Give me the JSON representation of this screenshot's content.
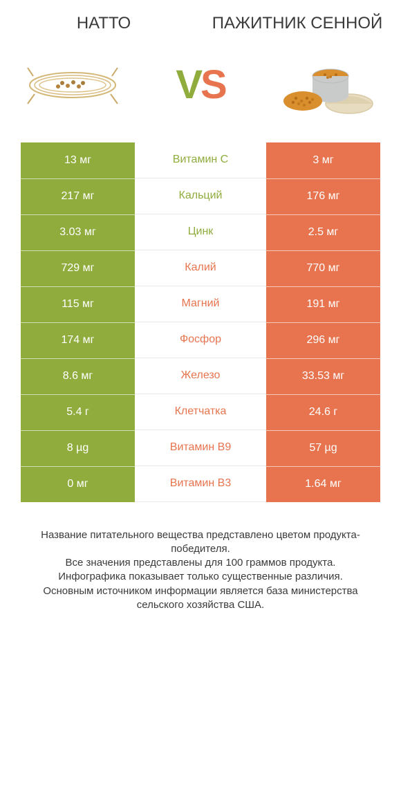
{
  "colors": {
    "left": "#8fac3d",
    "right": "#e7744e",
    "midBorder": "#e8e8e8",
    "text": "#3a3a3a",
    "white": "#ffffff"
  },
  "header": {
    "leftTitle": "НАТТО",
    "rightTitle": "ПАЖИТНИК СЕННОЙ",
    "vs_v": "V",
    "vs_s": "S"
  },
  "table": {
    "leftColumnColor": "#8fac3d",
    "rightColumnColor": "#e7744e",
    "rows": [
      {
        "left": "13 мг",
        "label": "Витамин C",
        "right": "3 мг",
        "winner": "left"
      },
      {
        "left": "217 мг",
        "label": "Кальций",
        "right": "176 мг",
        "winner": "left"
      },
      {
        "left": "3.03 мг",
        "label": "Цинк",
        "right": "2.5 мг",
        "winner": "left"
      },
      {
        "left": "729 мг",
        "label": "Калий",
        "right": "770 мг",
        "winner": "right"
      },
      {
        "left": "115 мг",
        "label": "Магний",
        "right": "191 мг",
        "winner": "right"
      },
      {
        "left": "174 мг",
        "label": "Фосфор",
        "right": "296 мг",
        "winner": "right"
      },
      {
        "left": "8.6 мг",
        "label": "Железо",
        "right": "33.53 мг",
        "winner": "right"
      },
      {
        "left": "5.4 г",
        "label": "Клетчатка",
        "right": "24.6 г",
        "winner": "right"
      },
      {
        "left": "8 µg",
        "label": "Витамин B9",
        "right": "57 µg",
        "winner": "right"
      },
      {
        "left": "0 мг",
        "label": "Витамин B3",
        "right": "1.64 мг",
        "winner": "right"
      }
    ]
  },
  "footer": {
    "line1": "Название питательного вещества представлено цветом продукта-победителя.",
    "line2": "Все значения представлены для 100 граммов продукта.",
    "line3": "Инфографика показывает только существенные различия.",
    "line4": "Основным источником информации является база министерства сельского хозяйства США."
  },
  "fontSizes": {
    "title": 24,
    "cell": 16,
    "footer": 15,
    "vs": 58
  }
}
